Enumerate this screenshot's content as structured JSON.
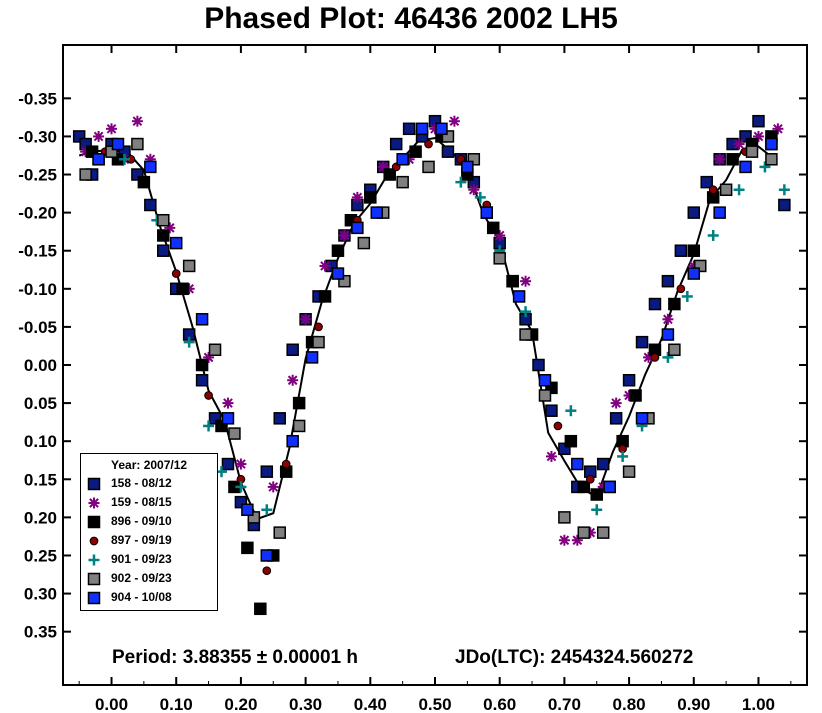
{
  "title": "Phased Plot: 46436 2002 LH5",
  "chart_data": {
    "type": "scatter",
    "title": "Phased Plot: 46436 2002 LH5",
    "xlabel": "",
    "ylabel": "",
    "xlim": [
      -0.075,
      1.075
    ],
    "ylim": [
      0.42,
      -0.42
    ],
    "y_inverted": true,
    "x_ticks": [
      "0.00",
      "0.10",
      "0.20",
      "0.30",
      "0.40",
      "0.50",
      "0.60",
      "0.70",
      "0.80",
      "0.90",
      "1.00"
    ],
    "y_ticks": [
      "-0.35",
      "-0.30",
      "-0.25",
      "-0.20",
      "-0.15",
      "-0.10",
      "-0.05",
      "0.00",
      "0.05",
      "0.10",
      "0.15",
      "0.20",
      "0.25",
      "0.30",
      "0.35"
    ],
    "legend_title": "Year: 2007/12",
    "legend_position": "bottom-left",
    "series": [
      {
        "name": "158 - 08/12",
        "marker": "square",
        "color": "#0a1a80",
        "x": [
          -0.05,
          -0.04,
          -0.03,
          -0.02,
          0.0,
          0.02,
          0.04,
          0.06,
          0.08,
          0.1,
          0.12,
          0.14,
          0.16,
          0.18,
          0.2,
          0.22,
          0.24,
          0.26,
          0.28,
          0.3,
          0.32,
          0.34,
          0.36,
          0.38,
          0.4,
          0.42,
          0.44,
          0.46,
          0.48,
          0.5,
          0.52,
          0.54,
          0.56,
          0.58,
          0.6,
          0.62,
          0.64,
          0.66,
          0.68,
          0.7,
          0.72,
          0.74,
          0.76,
          0.78,
          0.8,
          0.82,
          0.84,
          0.86,
          0.88,
          0.9,
          0.92,
          0.94,
          0.96,
          0.98,
          1.0,
          1.02,
          1.04
        ],
        "y": [
          -0.3,
          -0.29,
          -0.25,
          -0.27,
          -0.29,
          -0.28,
          -0.25,
          -0.21,
          -0.15,
          -0.1,
          -0.04,
          0.02,
          0.07,
          0.13,
          0.18,
          0.21,
          0.14,
          0.07,
          -0.02,
          -0.06,
          -0.09,
          -0.13,
          -0.17,
          -0.21,
          -0.23,
          -0.26,
          -0.29,
          -0.31,
          -0.3,
          -0.32,
          -0.28,
          -0.27,
          -0.24,
          -0.2,
          -0.16,
          -0.11,
          -0.06,
          0.0,
          0.06,
          0.11,
          0.16,
          0.14,
          0.13,
          0.07,
          0.02,
          -0.03,
          -0.08,
          -0.11,
          -0.15,
          -0.2,
          -0.24,
          -0.27,
          -0.29,
          -0.3,
          -0.32,
          -0.29,
          -0.21
        ]
      },
      {
        "name": "159 - 08/15",
        "marker": "asterisk",
        "color": "#800080",
        "x": [
          -0.04,
          -0.02,
          0.0,
          0.02,
          0.04,
          0.06,
          0.09,
          0.12,
          0.15,
          0.18,
          0.2,
          0.22,
          0.25,
          0.28,
          0.3,
          0.33,
          0.36,
          0.38,
          0.42,
          0.46,
          0.5,
          0.53,
          0.56,
          0.6,
          0.64,
          0.68,
          0.7,
          0.72,
          0.74,
          0.76,
          0.78,
          0.8,
          0.83,
          0.86,
          0.9,
          0.94,
          0.97,
          1.0,
          1.03
        ],
        "y": [
          -0.28,
          -0.3,
          -0.31,
          -0.27,
          -0.32,
          -0.27,
          -0.18,
          -0.1,
          -0.01,
          0.05,
          0.13,
          0.2,
          0.16,
          0.02,
          -0.06,
          -0.13,
          -0.17,
          -0.22,
          -0.26,
          -0.27,
          -0.31,
          -0.32,
          -0.23,
          -0.17,
          -0.11,
          0.12,
          0.23,
          0.23,
          0.22,
          0.16,
          0.05,
          0.04,
          -0.01,
          -0.06,
          -0.13,
          -0.27,
          -0.29,
          -0.3,
          -0.31
        ]
      },
      {
        "name": "896 - 09/10",
        "marker": "square",
        "color": "#000000",
        "x": [
          -0.03,
          0.01,
          0.05,
          0.08,
          0.11,
          0.14,
          0.17,
          0.19,
          0.21,
          0.23,
          0.25,
          0.27,
          0.29,
          0.31,
          0.33,
          0.35,
          0.37,
          0.4,
          0.43,
          0.47,
          0.51,
          0.55,
          0.59,
          0.62,
          0.65,
          0.68,
          0.71,
          0.73,
          0.75,
          0.77,
          0.79,
          0.81,
          0.84,
          0.87,
          0.9,
          0.93,
          0.96,
          0.99,
          1.02
        ],
        "y": [
          -0.28,
          -0.27,
          -0.24,
          -0.17,
          -0.1,
          0.0,
          0.08,
          0.16,
          0.24,
          0.32,
          0.25,
          0.14,
          0.05,
          -0.03,
          -0.09,
          -0.15,
          -0.19,
          -0.22,
          -0.25,
          -0.28,
          -0.3,
          -0.25,
          -0.18,
          -0.11,
          -0.04,
          0.03,
          0.1,
          0.16,
          0.17,
          0.16,
          0.1,
          0.04,
          -0.02,
          -0.08,
          -0.15,
          -0.22,
          -0.27,
          -0.29,
          -0.3
        ]
      },
      {
        "name": "897 - 09/19",
        "marker": "circle",
        "color": "#8b0000",
        "x": [
          -0.01,
          0.03,
          0.1,
          0.15,
          0.2,
          0.24,
          0.27,
          0.32,
          0.38,
          0.44,
          0.49,
          0.54,
          0.58,
          0.63,
          0.69,
          0.74,
          0.79,
          0.84,
          0.88,
          0.93,
          0.98
        ],
        "y": [
          -0.28,
          -0.27,
          -0.12,
          0.04,
          0.15,
          0.27,
          0.13,
          -0.05,
          -0.19,
          -0.26,
          -0.29,
          -0.27,
          -0.21,
          -0.09,
          0.08,
          0.15,
          0.11,
          -0.01,
          -0.1,
          -0.23,
          -0.28
        ]
      },
      {
        "name": "901 - 09/23",
        "marker": "plus",
        "color": "#008080",
        "x": [
          0.02,
          0.07,
          0.12,
          0.15,
          0.17,
          0.2,
          0.24,
          0.54,
          0.57,
          0.6,
          0.64,
          0.71,
          0.75,
          0.79,
          0.82,
          0.86,
          0.89,
          0.93,
          0.97,
          1.01,
          1.04
        ],
        "y": [
          -0.27,
          -0.19,
          -0.03,
          0.08,
          0.14,
          0.16,
          0.19,
          -0.24,
          -0.22,
          -0.15,
          -0.07,
          0.06,
          0.19,
          0.12,
          0.08,
          -0.01,
          -0.09,
          -0.17,
          -0.23,
          -0.26,
          -0.23
        ]
      },
      {
        "name": "902 - 09/23",
        "marker": "square",
        "color": "#808080",
        "x": [
          -0.04,
          0.0,
          0.04,
          0.08,
          0.12,
          0.16,
          0.19,
          0.22,
          0.26,
          0.29,
          0.32,
          0.36,
          0.39,
          0.42,
          0.45,
          0.49,
          0.52,
          0.56,
          0.6,
          0.64,
          0.67,
          0.7,
          0.73,
          0.76,
          0.8,
          0.83,
          0.87,
          0.91,
          0.95,
          0.99,
          1.02
        ],
        "y": [
          -0.25,
          -0.28,
          -0.29,
          -0.19,
          -0.13,
          -0.02,
          0.09,
          0.2,
          0.22,
          0.08,
          -0.03,
          -0.11,
          -0.16,
          -0.2,
          -0.24,
          -0.26,
          -0.3,
          -0.27,
          -0.14,
          -0.04,
          0.04,
          0.2,
          0.22,
          0.22,
          0.14,
          0.07,
          -0.02,
          -0.13,
          -0.23,
          -0.28,
          -0.27
        ]
      },
      {
        "name": "904 - 10/08",
        "marker": "square",
        "color": "#1030ff",
        "x": [
          -0.02,
          0.01,
          0.06,
          0.1,
          0.14,
          0.18,
          0.21,
          0.24,
          0.28,
          0.31,
          0.35,
          0.38,
          0.41,
          0.45,
          0.48,
          0.51,
          0.55,
          0.58,
          0.63,
          0.67,
          0.72,
          0.77,
          0.82,
          0.86,
          0.9,
          0.94,
          0.98,
          1.02
        ],
        "y": [
          -0.27,
          -0.29,
          -0.26,
          -0.16,
          -0.06,
          0.07,
          0.19,
          0.25,
          0.1,
          -0.01,
          -0.12,
          -0.18,
          -0.2,
          -0.27,
          -0.31,
          -0.31,
          -0.26,
          -0.2,
          -0.09,
          0.02,
          0.13,
          0.16,
          0.07,
          -0.04,
          -0.12,
          -0.2,
          -0.26,
          -0.29
        ]
      }
    ],
    "annotations": [
      "Period: 3.88355 ± 0.00001 h",
      "JDo(LTC): 2454324.560272"
    ]
  }
}
